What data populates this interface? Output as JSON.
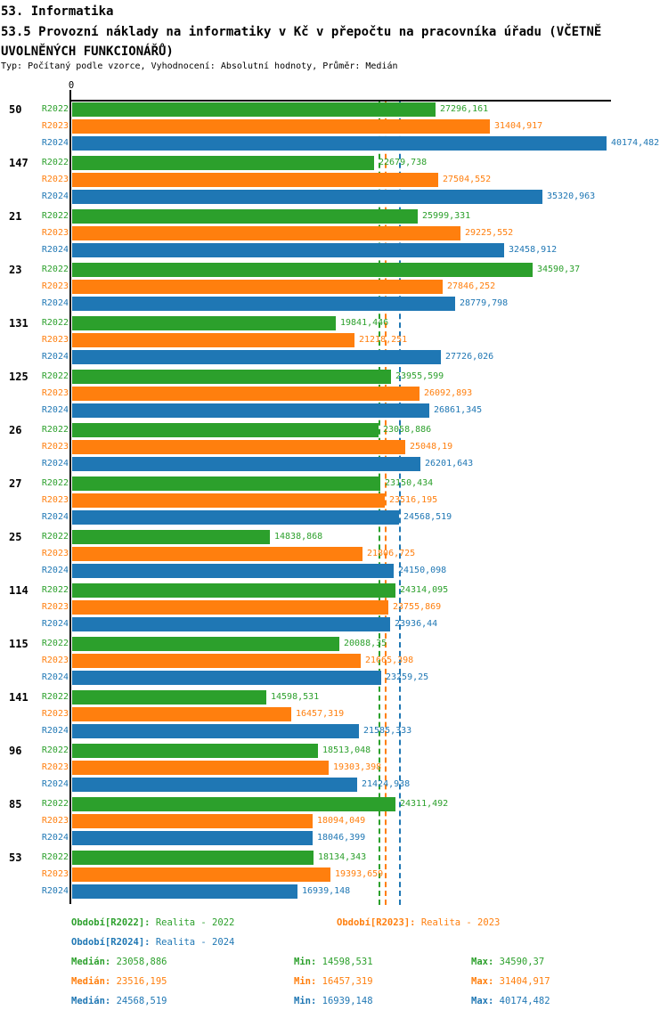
{
  "header": {
    "line1": "53. Informatika",
    "line2": "53.5 Provozní náklady na informatiky v Kč v přepočtu na pracovníka úřadu (VČETNĚ UVOLNĚNÝCH FUNKCIONÁŘŮ)",
    "line3": "Typ: Počítaný podle vzorce, Vyhodnocení: Absolutní hodnoty, Průměr: Medián"
  },
  "chart_data": {
    "type": "bar",
    "orientation": "horizontal",
    "title": "53.5 Provozní náklady na informatiky v Kč v přepočtu na pracovníka úřadu (VČETNĚ UVOLNĚNÝCH FUNKCIONÁŘŮ)",
    "x_axis": {
      "origin_label": "0",
      "min": 0,
      "max": 40174.482,
      "grid": false
    },
    "legend_position": "bottom",
    "series_labels": [
      "R2022",
      "R2023",
      "R2024"
    ],
    "series_colors": [
      "#2ca02c",
      "#ff7f0e",
      "#1f77b4"
    ],
    "medians": [
      23058.886,
      23516.195,
      24568.519
    ],
    "groups": [
      {
        "category": "50",
        "values": [
          27296.161,
          31404.917,
          40174.482
        ],
        "value_labels": [
          "27296,161",
          "31404,917",
          "40174,482"
        ]
      },
      {
        "category": "147",
        "values": [
          22679.738,
          27504.552,
          35320.963
        ],
        "value_labels": [
          "22679,738",
          "27504,552",
          "35320,963"
        ]
      },
      {
        "category": "21",
        "values": [
          25999.331,
          29225.552,
          32458.912
        ],
        "value_labels": [
          "25999,331",
          "29225,552",
          "32458,912"
        ]
      },
      {
        "category": "23",
        "values": [
          34590.37,
          27846.252,
          28779.798
        ],
        "value_labels": [
          "34590,37",
          "27846,252",
          "28779,798"
        ]
      },
      {
        "category": "131",
        "values": [
          19841.446,
          21218.251,
          27726.026
        ],
        "value_labels": [
          "19841,446",
          "21218,251",
          "27726,026"
        ]
      },
      {
        "category": "125",
        "values": [
          23955.599,
          26092.893,
          26861.345
        ],
        "value_labels": [
          "23955,599",
          "26092,893",
          "26861,345"
        ]
      },
      {
        "category": "26",
        "values": [
          23058.886,
          25048.19,
          26201.643
        ],
        "value_labels": [
          "23058,886",
          "25048,19",
          "26201,643"
        ]
      },
      {
        "category": "27",
        "values": [
          23150.434,
          23516.195,
          24568.519
        ],
        "value_labels": [
          "23150,434",
          "23516,195",
          "24568,519"
        ]
      },
      {
        "category": "25",
        "values": [
          14838.868,
          21806.725,
          24150.098
        ],
        "value_labels": [
          "14838,868",
          "21806,725",
          "24150,098"
        ]
      },
      {
        "category": "114",
        "values": [
          24314.095,
          23755.869,
          23936.44
        ],
        "value_labels": [
          "24314,095",
          "23755,869",
          "23936,44"
        ]
      },
      {
        "category": "115",
        "values": [
          20088.35,
          21665.398,
          23259.25
        ],
        "value_labels": [
          "20088,35",
          "21665,398",
          "23259,25"
        ]
      },
      {
        "category": "141",
        "values": [
          14598.531,
          16457.319,
          21585.333
        ],
        "value_labels": [
          "14598,531",
          "16457,319",
          "21585,333"
        ]
      },
      {
        "category": "96",
        "values": [
          18513.048,
          19303.398,
          21424.938
        ],
        "value_labels": [
          "18513,048",
          "19303,398",
          "21424,938"
        ]
      },
      {
        "category": "85",
        "values": [
          24311.492,
          18094.049,
          18046.399
        ],
        "value_labels": [
          "24311,492",
          "18094,049",
          "18046,399"
        ]
      },
      {
        "category": "53",
        "values": [
          18134.343,
          19393.659,
          16939.148
        ],
        "value_labels": [
          "18134,343",
          "19393,659",
          "16939,148"
        ]
      }
    ]
  },
  "footer": {
    "legend": [
      {
        "label": "Období[R2022]:",
        "value": "Realita - 2022"
      },
      {
        "label": "Období[R2023]:",
        "value": "Realita - 2023"
      },
      {
        "label": "Období[R2024]:",
        "value": "Realita - 2024"
      }
    ],
    "stats": [
      {
        "median_label": "Medián:",
        "median": "23058,886",
        "min_label": "Min:",
        "min": "14598,531",
        "max_label": "Max:",
        "max": "34590,37"
      },
      {
        "median_label": "Medián:",
        "median": "23516,195",
        "min_label": "Min:",
        "min": "16457,319",
        "max_label": "Max:",
        "max": "31404,917"
      },
      {
        "median_label": "Medián:",
        "median": "24568,519",
        "min_label": "Min:",
        "min": "16939,148",
        "max_label": "Max:",
        "max": "40174,482"
      }
    ]
  }
}
